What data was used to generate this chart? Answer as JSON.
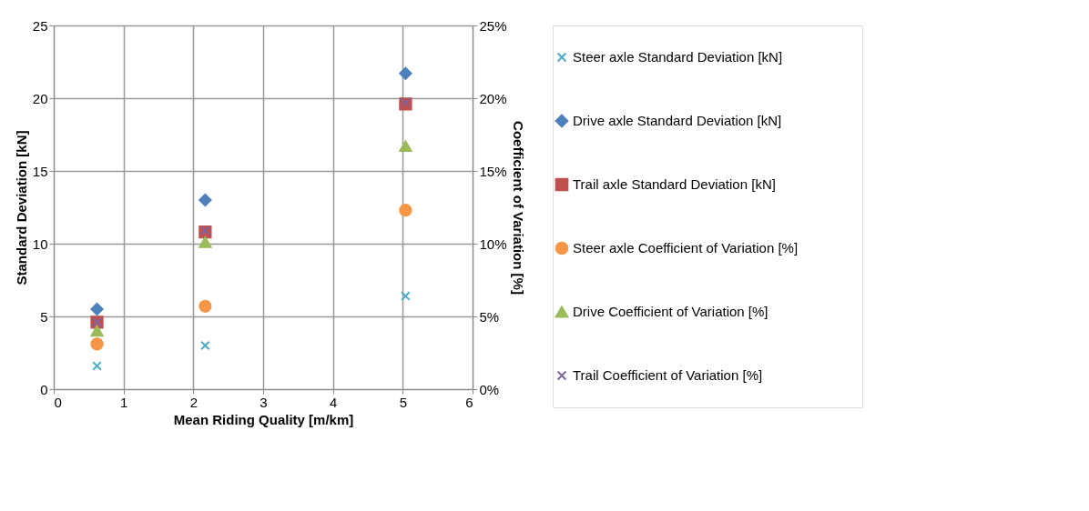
{
  "chart_data": {
    "type": "scatter",
    "xlabel": "Mean Riding Quality [m/km]",
    "ylabel": "Standard Deviation [kN]",
    "y2label": "Coefficient of Variation [%]",
    "x": [
      0.62,
      2.17,
      5.04
    ],
    "series": [
      {
        "name": "Steer axle Standard Deviation [kN]",
        "color": "#4bacc6",
        "marker": "cross",
        "values": [
          1.6,
          3.0,
          6.4
        ]
      },
      {
        "name": "Drive axle Standard Deviation [kN]",
        "color": "#4f81bd",
        "marker": "diamond",
        "values": [
          5.5,
          13.0,
          21.7
        ]
      },
      {
        "name": "Trail axle Standard Deviation [kN]",
        "color": "#c0504d",
        "marker": "square",
        "values": [
          4.6,
          10.8,
          19.6
        ]
      },
      {
        "name": "Steer axle Coefficient of Variation [%]",
        "color": "#f79646",
        "marker": "circle",
        "axis": "y2",
        "values": [
          3.1,
          5.7,
          12.3
        ]
      },
      {
        "name": "Drive Coefficient of Variation [%]",
        "color": "#9bbb59",
        "marker": "triangle",
        "axis": "y2",
        "values": [
          4.0,
          10.1,
          16.7
        ]
      },
      {
        "name": "Trail Coefficient of Variation [%]",
        "color": "#8064a2",
        "marker": "cross",
        "axis": "y2",
        "values": [
          4.6,
          10.9,
          19.7
        ]
      }
    ],
    "xlim": [
      0,
      6
    ],
    "xticks": [
      0,
      1,
      2,
      3,
      4,
      5,
      6
    ],
    "ylim": [
      0,
      25
    ],
    "yticks": [
      0,
      5,
      10,
      15,
      20,
      25
    ],
    "y2lim": [
      0,
      25
    ],
    "y2ticks": [
      {
        "value": 0,
        "label": "0%"
      },
      {
        "value": 5,
        "label": "5%"
      },
      {
        "value": 10,
        "label": "10%"
      },
      {
        "value": 15,
        "label": "15%"
      },
      {
        "value": 20,
        "label": "20%"
      },
      {
        "value": 25,
        "label": "25%"
      }
    ],
    "grid": true,
    "legend": "right"
  }
}
